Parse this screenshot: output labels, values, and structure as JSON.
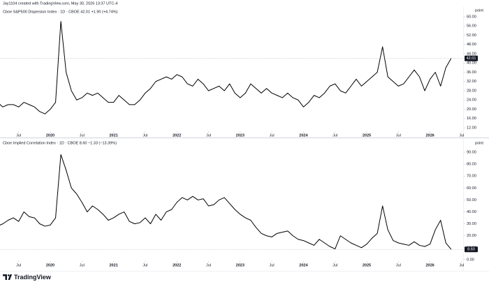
{
  "attribution": "Jay1104 created with TradingView.com, May 30, 2026 13:37 UTC-4",
  "logo": "TradingView",
  "chart_data": [
    {
      "type": "line",
      "title": "Cboe S&P500 Dispersion Index · 1D · CBOE  42.01 +1.90 (+4.74%)",
      "unit": "point",
      "price_label": "42.01",
      "x": [
        "2019-03",
        "2019-04",
        "2019-05",
        "2019-06",
        "2019-07",
        "2019-08",
        "2019-09",
        "2019-10",
        "2019-11",
        "2019-12",
        "2020-01",
        "2020-02",
        "2020-03",
        "2020-04",
        "2020-05",
        "2020-06",
        "2020-07",
        "2020-08",
        "2020-09",
        "2020-10",
        "2020-11",
        "2020-12",
        "2021-01",
        "2021-02",
        "2021-03",
        "2021-04",
        "2021-05",
        "2021-06",
        "2021-07",
        "2021-08",
        "2021-09",
        "2021-10",
        "2021-11",
        "2021-12",
        "2022-01",
        "2022-02",
        "2022-03",
        "2022-04",
        "2022-05",
        "2022-06",
        "2022-07",
        "2022-08",
        "2022-09",
        "2022-10",
        "2022-11",
        "2022-12",
        "2023-01",
        "2023-02",
        "2023-03",
        "2023-04",
        "2023-05",
        "2023-06",
        "2023-07",
        "2023-08",
        "2023-09",
        "2023-10",
        "2023-11",
        "2023-12",
        "2024-01",
        "2024-02",
        "2024-03",
        "2024-04",
        "2024-05",
        "2024-06",
        "2024-07",
        "2024-08",
        "2024-09",
        "2024-10",
        "2024-11",
        "2024-12",
        "2025-01",
        "2025-02",
        "2025-03",
        "2025-04",
        "2025-05",
        "2025-06",
        "2025-07",
        "2025-08",
        "2025-09",
        "2025-10",
        "2025-11",
        "2025-12",
        "2026-01",
        "2026-02",
        "2026-03",
        "2026-04",
        "2026-05"
      ],
      "series": [
        {
          "color": "#000000",
          "values": [
            23,
            21,
            22,
            22,
            21,
            23,
            22,
            21,
            19,
            18,
            20,
            23,
            58,
            36,
            28,
            24,
            25,
            27,
            26,
            27,
            25,
            23,
            23,
            26,
            24,
            22,
            22,
            24,
            27,
            29,
            32,
            33,
            34,
            33,
            35,
            34,
            31,
            30,
            33,
            31,
            28,
            29,
            30,
            28,
            31,
            27,
            25,
            27,
            31,
            29,
            27,
            29,
            27,
            26,
            25,
            27,
            25,
            24,
            21,
            23,
            26,
            25,
            27,
            30,
            31,
            28,
            27,
            30,
            33,
            30,
            32,
            34,
            36,
            47,
            34,
            32,
            30,
            31,
            34,
            37,
            34,
            28,
            33,
            36,
            30,
            38,
            42.01
          ]
        }
      ],
      "xticks": [
        {
          "value": "2019-07",
          "label": "Jul"
        },
        {
          "value": "2020-01",
          "label": "2020"
        },
        {
          "value": "2020-07",
          "label": "Jul"
        },
        {
          "value": "2021-01",
          "label": "2021"
        },
        {
          "value": "2021-07",
          "label": "Jul"
        },
        {
          "value": "2022-01",
          "label": "2022"
        },
        {
          "value": "2022-07",
          "label": "Jul"
        },
        {
          "value": "2023-01",
          "label": "2023"
        },
        {
          "value": "2023-07",
          "label": "Jul"
        },
        {
          "value": "2024-01",
          "label": "2024"
        },
        {
          "value": "2024-07",
          "label": "Jul"
        },
        {
          "value": "2025-01",
          "label": "2025"
        },
        {
          "value": "2025-07",
          "label": "Jul"
        },
        {
          "value": "2026-01",
          "label": "2026"
        },
        {
          "value": "2026-07",
          "label": "Jul"
        }
      ],
      "ylim": [
        10.5,
        61.2
      ],
      "yticks": [
        {
          "value": 12,
          "label": "12.00"
        },
        {
          "value": 16,
          "label": "16.00"
        },
        {
          "value": 20,
          "label": "20.00"
        },
        {
          "value": 24,
          "label": "24.00"
        },
        {
          "value": 28,
          "label": "28.00"
        },
        {
          "value": 32,
          "label": "32.00"
        },
        {
          "value": 36,
          "label": "36.00"
        },
        {
          "value": 40,
          "label": "40.00"
        },
        {
          "value": 44,
          "label": "44.00"
        },
        {
          "value": 48,
          "label": "48.00"
        },
        {
          "value": 52,
          "label": "52.00"
        },
        {
          "value": 56,
          "label": "56.00"
        },
        {
          "value": 60,
          "label": "60.00"
        }
      ]
    },
    {
      "type": "line",
      "title": "Cboe Implied Correlation Index · 1D · CBOE  8.60 −1.33 (−13.39%)",
      "unit": "point",
      "price_label": "8.60",
      "x": [
        "2019-03",
        "2019-04",
        "2019-05",
        "2019-06",
        "2019-07",
        "2019-08",
        "2019-09",
        "2019-10",
        "2019-11",
        "2019-12",
        "2020-01",
        "2020-02",
        "2020-03",
        "2020-04",
        "2020-05",
        "2020-06",
        "2020-07",
        "2020-08",
        "2020-09",
        "2020-10",
        "2020-11",
        "2020-12",
        "2021-01",
        "2021-02",
        "2021-03",
        "2021-04",
        "2021-05",
        "2021-06",
        "2021-07",
        "2021-08",
        "2021-09",
        "2021-10",
        "2021-11",
        "2021-12",
        "2022-01",
        "2022-02",
        "2022-03",
        "2022-04",
        "2022-05",
        "2022-06",
        "2022-07",
        "2022-08",
        "2022-09",
        "2022-10",
        "2022-11",
        "2022-12",
        "2023-01",
        "2023-02",
        "2023-03",
        "2023-04",
        "2023-05",
        "2023-06",
        "2023-07",
        "2023-08",
        "2023-09",
        "2023-10",
        "2023-11",
        "2023-12",
        "2024-01",
        "2024-02",
        "2024-03",
        "2024-04",
        "2024-05",
        "2024-06",
        "2024-07",
        "2024-08",
        "2024-09",
        "2024-10",
        "2024-11",
        "2024-12",
        "2025-01",
        "2025-02",
        "2025-03",
        "2025-04",
        "2025-05",
        "2025-06",
        "2025-07",
        "2025-08",
        "2025-09",
        "2025-10",
        "2025-11",
        "2025-12",
        "2026-01",
        "2026-02",
        "2026-03",
        "2026-04",
        "2026-05"
      ],
      "series": [
        {
          "color": "#000000",
          "values": [
            28,
            30,
            33,
            35,
            32,
            40,
            36,
            35,
            30,
            28,
            29,
            35,
            88,
            75,
            60,
            55,
            48,
            40,
            45,
            42,
            38,
            33,
            35,
            38,
            40,
            32,
            30,
            31,
            35,
            30,
            38,
            33,
            40,
            42,
            48,
            52,
            50,
            53,
            50,
            51,
            45,
            46,
            50,
            52,
            47,
            42,
            38,
            35,
            33,
            27,
            22,
            20,
            19,
            22,
            23,
            24,
            20,
            17,
            16,
            14,
            12,
            17,
            14,
            11,
            9,
            20,
            17,
            14,
            12,
            10,
            13,
            18,
            22,
            45,
            25,
            16,
            14,
            13,
            12,
            15,
            12,
            11,
            13,
            25,
            33,
            14,
            8.6
          ]
        }
      ],
      "xticks": [
        {
          "value": "2019-07",
          "label": "Jul"
        },
        {
          "value": "2020-01",
          "label": "2020"
        },
        {
          "value": "2020-07",
          "label": "Jul"
        },
        {
          "value": "2021-01",
          "label": "2021"
        },
        {
          "value": "2021-07",
          "label": "Jul"
        },
        {
          "value": "2022-01",
          "label": "2022"
        },
        {
          "value": "2022-07",
          "label": "Jul"
        },
        {
          "value": "2023-01",
          "label": "2023"
        },
        {
          "value": "2023-07",
          "label": "Jul"
        },
        {
          "value": "2024-01",
          "label": "2024"
        },
        {
          "value": "2024-07",
          "label": "Jul"
        },
        {
          "value": "2025-01",
          "label": "2025"
        },
        {
          "value": "2025-07",
          "label": "Jul"
        },
        {
          "value": "2026-01",
          "label": "2026"
        },
        {
          "value": "2026-07",
          "label": "Jul"
        }
      ],
      "ylim": [
        -1.2,
        94.7
      ],
      "yticks": [
        {
          "value": 0,
          "label": "0.00"
        },
        {
          "value": 10,
          "label": "10.00"
        },
        {
          "value": 20,
          "label": "20.00"
        },
        {
          "value": 30,
          "label": "30.00"
        },
        {
          "value": 40,
          "label": "40.00"
        },
        {
          "value": 50,
          "label": "50.00"
        },
        {
          "value": 60,
          "label": "60.00"
        },
        {
          "value": 70,
          "label": "70.00"
        },
        {
          "value": 80,
          "label": "80.00"
        },
        {
          "value": 90,
          "label": "90.00"
        }
      ]
    }
  ]
}
